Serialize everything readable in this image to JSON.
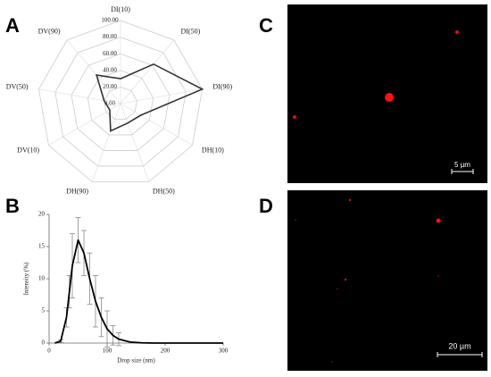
{
  "panels": [
    "A",
    "B",
    "C",
    "D"
  ],
  "images": [
    {
      "scale_label": "5 µm"
    },
    {
      "scale_label": "20 µm"
    }
  ],
  "chart_data": [
    {
      "type": "radar",
      "categories": [
        "DI(10)",
        "DI(50)",
        "DI(90)",
        "DH(10)",
        "DH(50)",
        "DH(90)",
        "DV(10)",
        "DV(50)",
        "DV(90)"
      ],
      "series": [
        {
          "color": "#333333",
          "values": [
            30,
            62,
            100,
            28,
            25,
            35,
            15,
            20,
            45
          ]
        }
      ],
      "ylim": [
        0,
        100
      ],
      "yticks": [
        {
          "value": 0,
          "label": "0.00"
        },
        {
          "value": 20,
          "label": "20.00"
        },
        {
          "value": 40,
          "label": "40.00"
        },
        {
          "value": 60,
          "label": "60.00"
        },
        {
          "value": 80,
          "label": "80.00"
        },
        {
          "value": 100,
          "label": "100.00"
        }
      ],
      "grid": true
    },
    {
      "type": "line",
      "x_label": "Drop size (nm)",
      "y_label": "Intensity (%)",
      "x": [
        10,
        20,
        30,
        35,
        40,
        50,
        60,
        70,
        80,
        90,
        100,
        110,
        120,
        140,
        160,
        180,
        200,
        250,
        300
      ],
      "series": [
        {
          "color": "#000000",
          "values": [
            0,
            0.3,
            4,
            8,
            12,
            16,
            14,
            10,
            6.5,
            4,
            2.2,
            1.2,
            0.6,
            0.15,
            0.03,
            0,
            0,
            0,
            0
          ],
          "errors": [
            null,
            0.2,
            1.5,
            2.5,
            5,
            3.5,
            3.5,
            4,
            4,
            3,
            2.8,
            1.5,
            1,
            null,
            null,
            null,
            null,
            null,
            null
          ]
        }
      ],
      "xlim": [
        0,
        300
      ],
      "xticks": [
        0,
        100,
        200,
        300
      ],
      "ylim": [
        0,
        20
      ],
      "yticks": [
        0,
        5,
        10,
        15,
        20
      ]
    }
  ]
}
